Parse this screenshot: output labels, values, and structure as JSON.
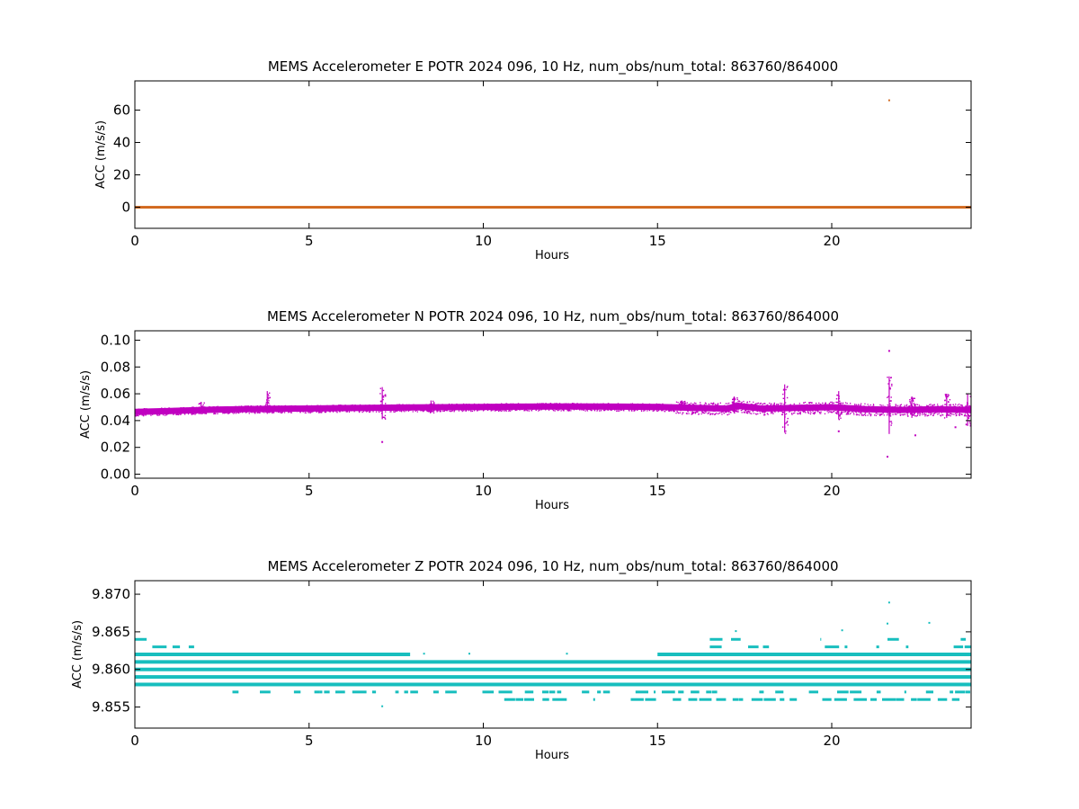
{
  "chart_data": [
    {
      "type": "scatter",
      "title": "MEMS Accelerometer E POTR 2024 096, 10 Hz, num_obs/num_total: 863760/864000",
      "xlabel": "Hours",
      "ylabel": "ACC (m/s/s)",
      "xlim": [
        0,
        24
      ],
      "ylim": [
        -13,
        78
      ],
      "xticks": [
        "0",
        "5",
        "10",
        "15",
        "20"
      ],
      "xtick_values": [
        0,
        5,
        10,
        15,
        20
      ],
      "yticks": [
        "0",
        "20",
        "40",
        "60"
      ],
      "ytick_values": [
        0,
        20,
        40,
        60
      ],
      "color": "#d2691e",
      "grid": false,
      "band": {
        "x": [
          0,
          24
        ],
        "y": [
          -0.2,
          0.2
        ]
      },
      "outliers": [
        {
          "x": 21.65,
          "y": 66
        }
      ]
    },
    {
      "type": "scatter",
      "title": "MEMS Accelerometer N POTR 2024 096, 10 Hz, num_obs/num_total: 863760/864000",
      "xlabel": "Hours",
      "ylabel": "ACC (m/s/s)",
      "xlim": [
        0,
        24
      ],
      "ylim": [
        -0.003,
        0.107
      ],
      "xticks": [
        "0",
        "5",
        "10",
        "15",
        "20"
      ],
      "xtick_values": [
        0,
        5,
        10,
        15,
        20
      ],
      "yticks": [
        "0.00",
        "0.02",
        "0.04",
        "0.06",
        "0.08",
        "0.10"
      ],
      "ytick_values": [
        0.0,
        0.02,
        0.04,
        0.06,
        0.08,
        0.1
      ],
      "color": "#c000c0",
      "grid": false,
      "trend": {
        "x": [
          0,
          1,
          2,
          3,
          4,
          5,
          6,
          7,
          8,
          9,
          10,
          11,
          12,
          13,
          14,
          15,
          16,
          17,
          17.3,
          18,
          19,
          20,
          21,
          22,
          23,
          24
        ],
        "y": [
          0.0465,
          0.0472,
          0.048,
          0.0485,
          0.0488,
          0.049,
          0.0493,
          0.0496,
          0.0498,
          0.05,
          0.0502,
          0.0504,
          0.0505,
          0.0505,
          0.0504,
          0.0502,
          0.0495,
          0.049,
          0.051,
          0.049,
          0.0495,
          0.05,
          0.0485,
          0.048,
          0.0485,
          0.048
        ]
      },
      "spikes": [
        {
          "x": 1.9,
          "min": 0.046,
          "max": 0.054
        },
        {
          "x": 3.8,
          "min": 0.045,
          "max": 0.062
        },
        {
          "x": 7.1,
          "min": 0.041,
          "max": 0.065
        },
        {
          "x": 8.5,
          "min": 0.046,
          "max": 0.055
        },
        {
          "x": 15.7,
          "min": 0.049,
          "max": 0.055
        },
        {
          "x": 17.2,
          "min": 0.047,
          "max": 0.058
        },
        {
          "x": 18.65,
          "min": 0.031,
          "max": 0.067
        },
        {
          "x": 20.2,
          "min": 0.041,
          "max": 0.062
        },
        {
          "x": 21.65,
          "min": 0.03,
          "max": 0.073
        },
        {
          "x": 22.3,
          "min": 0.042,
          "max": 0.058
        },
        {
          "x": 23.3,
          "min": 0.042,
          "max": 0.06
        },
        {
          "x": 23.9,
          "min": 0.036,
          "max": 0.06
        }
      ],
      "outliers": [
        {
          "x": 7.1,
          "y": 0.024
        },
        {
          "x": 21.65,
          "y": 0.092
        },
        {
          "x": 21.6,
          "y": 0.013
        },
        {
          "x": 20.2,
          "y": 0.032
        },
        {
          "x": 22.4,
          "y": 0.029
        },
        {
          "x": 23.55,
          "y": 0.035
        }
      ]
    },
    {
      "type": "scatter",
      "title": "MEMS Accelerometer Z POTR 2024 096, 10 Hz, num_obs/num_total: 863760/864000",
      "xlabel": "Hours",
      "ylabel": "ACC (m/s/s)",
      "xlim": [
        0,
        24
      ],
      "ylim": [
        9.8522,
        9.8718
      ],
      "xticks": [
        "0",
        "5",
        "10",
        "15",
        "20"
      ],
      "xtick_values": [
        0,
        5,
        10,
        15,
        20
      ],
      "yticks": [
        "9.855",
        "9.860",
        "9.865",
        "9.870"
      ],
      "ytick_values": [
        9.855,
        9.86,
        9.865,
        9.87
      ],
      "color": "#17bebe",
      "grid": false,
      "levels": [
        {
          "y": 9.864,
          "segments": [
            [
              0,
              0.65
            ],
            [
              16.5,
              17.4
            ],
            [
              19.4,
              19.7
            ],
            [
              21.6,
              22
            ],
            [
              23.7,
              24
            ]
          ],
          "sparse": true
        },
        {
          "y": 9.863,
          "segments": [
            [
              0,
              1.7
            ],
            [
              16.5,
              17.5
            ],
            [
              17.6,
              18.2
            ],
            [
              18.6,
              19
            ],
            [
              19.8,
              20.5
            ],
            [
              20.8,
              22.2
            ],
            [
              22.7,
              23.4
            ],
            [
              23.5,
              24
            ]
          ],
          "sparse": true
        },
        {
          "y": 9.862,
          "segments": [
            [
              0,
              7.9
            ],
            [
              15,
              24
            ]
          ],
          "sparse": false
        },
        {
          "y": 9.861,
          "segments": [
            [
              0,
              24
            ]
          ],
          "sparse": false
        },
        {
          "y": 9.86,
          "segments": [
            [
              0,
              24
            ]
          ],
          "sparse": false
        },
        {
          "y": 9.859,
          "segments": [
            [
              0,
              24
            ]
          ],
          "sparse": false
        },
        {
          "y": 9.858,
          "segments": [
            [
              0,
              24
            ]
          ],
          "sparse": false
        },
        {
          "y": 9.857,
          "segments": [
            [
              2.8,
              24
            ]
          ],
          "sparse": true
        },
        {
          "y": 9.856,
          "segments": [
            [
              10.6,
              24
            ]
          ],
          "sparse": true
        }
      ],
      "outliers": [
        {
          "x": 7.1,
          "y": 9.8551
        },
        {
          "x": 21.65,
          "y": 9.8689
        },
        {
          "x": 20.3,
          "y": 9.8652
        },
        {
          "x": 17.25,
          "y": 9.8651
        },
        {
          "x": 22.8,
          "y": 9.8662
        },
        {
          "x": 21.6,
          "y": 9.8661
        },
        {
          "x": 8.3,
          "y": 9.8621
        },
        {
          "x": 9.6,
          "y": 9.8621
        },
        {
          "x": 12.4,
          "y": 9.8621
        }
      ]
    }
  ]
}
